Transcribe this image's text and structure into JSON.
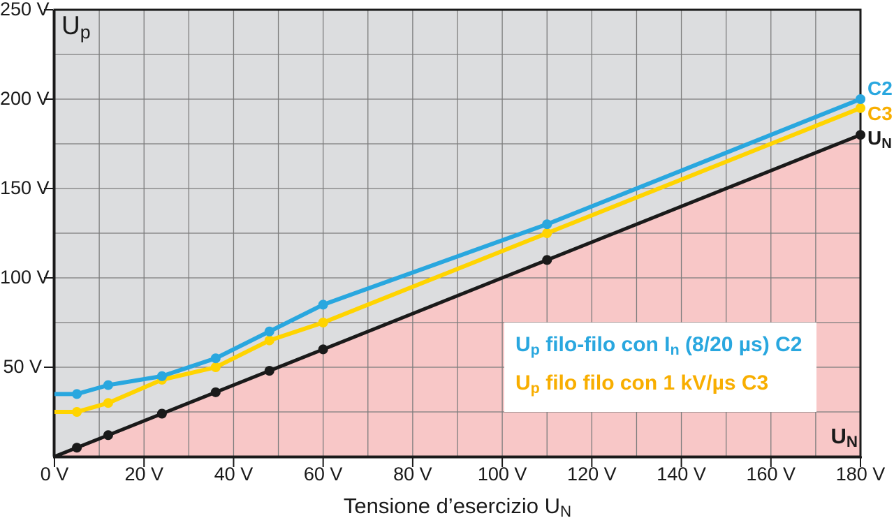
{
  "chart_data": {
    "type": "line",
    "title": "",
    "xlabel": "Tensione d'esercizio UN",
    "ylabel": "Up",
    "xlabel_segments": [
      {
        "t": "Tensione d’esercizio U"
      },
      {
        "t": "N",
        "sub": true
      }
    ],
    "y_axis_corner_label_segments": [
      {
        "t": "U"
      },
      {
        "t": "p",
        "sub": true
      }
    ],
    "x_axis_corner_label_segments": [
      {
        "t": "U"
      },
      {
        "t": "N",
        "sub": true
      }
    ],
    "x_axis": {
      "min": 0,
      "max": 180,
      "grid_step": 10,
      "ticks": [
        {
          "v": 0,
          "label": "0 V"
        },
        {
          "v": 20,
          "label": "20 V"
        },
        {
          "v": 40,
          "label": "40 V"
        },
        {
          "v": 60,
          "label": "60 V"
        },
        {
          "v": 80,
          "label": "80 V"
        },
        {
          "v": 100,
          "label": "100 V"
        },
        {
          "v": 120,
          "label": "120 V"
        },
        {
          "v": 140,
          "label": "140 V"
        },
        {
          "v": 160,
          "label": "160 V"
        },
        {
          "v": 180,
          "label": "180 V"
        }
      ]
    },
    "y_axis": {
      "min": 0,
      "max": 250,
      "grid_step": 25,
      "ticks": [
        {
          "v": 250,
          "label": "250 V"
        },
        {
          "v": 200,
          "label": "200 V"
        },
        {
          "v": 150,
          "label": "150 V"
        },
        {
          "v": 100,
          "label": "100 V"
        },
        {
          "v": 50,
          "label": "50 V"
        }
      ]
    },
    "shade_below_series": "UN",
    "series": [
      {
        "name": "UN",
        "color": "#1a1a1a",
        "width": 5,
        "x": [
          0,
          5,
          12,
          24,
          36,
          48,
          60,
          110,
          180
        ],
        "y": [
          0,
          5,
          12,
          24,
          36,
          48,
          60,
          110,
          180
        ],
        "markers": [
          5,
          12,
          24,
          36,
          48,
          60,
          110,
          180
        ],
        "marker_r": 7,
        "end_label_segments": [
          {
            "t": "U"
          },
          {
            "t": "N",
            "sub": true
          }
        ],
        "end_label_color": "#1a1a1a"
      },
      {
        "name": "C3",
        "color": "#ffd400",
        "width": 6,
        "x": [
          0,
          5,
          12,
          24,
          36,
          48,
          60,
          110,
          180
        ],
        "y": [
          25,
          25,
          30,
          43,
          50,
          65,
          75,
          125,
          195
        ],
        "markers": [
          5,
          12,
          24,
          36,
          48,
          60,
          110,
          180
        ],
        "marker_r": 7,
        "end_label_segments": [
          {
            "t": "C3"
          }
        ],
        "end_label_color": "#f8ae00"
      },
      {
        "name": "C2",
        "color": "#29a7df",
        "width": 6,
        "x": [
          0,
          5,
          12,
          24,
          36,
          48,
          60,
          110,
          180
        ],
        "y": [
          35,
          35,
          40,
          45,
          55,
          70,
          85,
          130,
          200
        ],
        "markers": [
          5,
          12,
          24,
          36,
          48,
          60,
          110,
          180
        ],
        "marker_r": 7,
        "end_label_segments": [
          {
            "t": "C2"
          }
        ],
        "end_label_color": "#29a7df"
      }
    ],
    "legend": {
      "position": "inside-bottom-right",
      "lines": [
        {
          "color": "#29a7df",
          "segments": [
            {
              "t": "U"
            },
            {
              "t": "p",
              "sub": true
            },
            {
              "t": " filo-filo con I"
            },
            {
              "t": "n",
              "sub": true
            },
            {
              "t": " (8/20 µs) C2"
            }
          ]
        },
        {
          "color": "#f8ae00",
          "segments": [
            {
              "t": "U"
            },
            {
              "t": "p",
              "sub": true
            },
            {
              "t": " filo filo con 1 kV/µs C3"
            }
          ]
        }
      ]
    },
    "colors": {
      "plot_bg": "#dcdddf",
      "shade": "#f8c7c7",
      "grid": "#7c7c7c",
      "axis": "#1a1a1a",
      "legend_bg": "#ffffff",
      "text": "#1a1a1a",
      "page_bg": "#ffffff"
    }
  }
}
